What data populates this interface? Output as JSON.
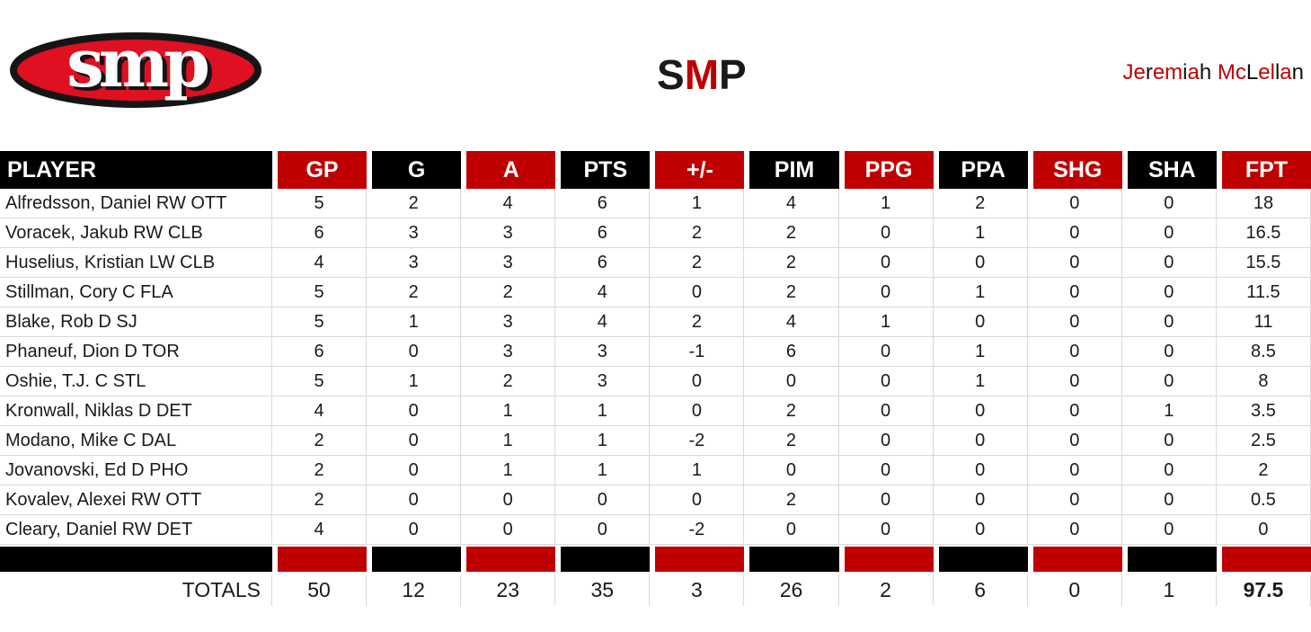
{
  "header": {
    "logo": {
      "text": "smp",
      "ellipse_fill": "#DE1021",
      "ellipse_stroke": "#151515",
      "letter_color": "#ffffff",
      "letter_shadow": "#151515"
    },
    "title_segments": [
      {
        "text": "S",
        "color": "#1a1a1a"
      },
      {
        "text": "M",
        "color": "#C00000"
      },
      {
        "text": "P",
        "color": "#1a1a1a"
      }
    ],
    "owner_segments": [
      {
        "text": "Je",
        "color": "#C00000"
      },
      {
        "text": "r",
        "color": "#111111"
      },
      {
        "text": "em",
        "color": "#C00000"
      },
      {
        "text": "i",
        "color": "#111111"
      },
      {
        "text": "a",
        "color": "#C00000"
      },
      {
        "text": "h ",
        "color": "#111111"
      },
      {
        "text": "Mc",
        "color": "#C00000"
      },
      {
        "text": "L",
        "color": "#111111"
      },
      {
        "text": "el",
        "color": "#C00000"
      },
      {
        "text": "l",
        "color": "#111111"
      },
      {
        "text": "a",
        "color": "#C00000"
      },
      {
        "text": "n",
        "color": "#111111"
      }
    ]
  },
  "table": {
    "columns": [
      {
        "key": "player",
        "label": "PLAYER",
        "bg": "#000000"
      },
      {
        "key": "gp",
        "label": "GP",
        "bg": "#C00000"
      },
      {
        "key": "g",
        "label": "G",
        "bg": "#000000"
      },
      {
        "key": "a",
        "label": "A",
        "bg": "#C00000"
      },
      {
        "key": "pts",
        "label": "PTS",
        "bg": "#000000"
      },
      {
        "key": "plus-minus",
        "label": "+/-",
        "bg": "#C00000"
      },
      {
        "key": "pim",
        "label": "PIM",
        "bg": "#000000"
      },
      {
        "key": "ppg",
        "label": "PPG",
        "bg": "#C00000"
      },
      {
        "key": "ppa",
        "label": "PPA",
        "bg": "#000000"
      },
      {
        "key": "shg",
        "label": "SHG",
        "bg": "#C00000"
      },
      {
        "key": "sha",
        "label": "SHA",
        "bg": "#000000"
      },
      {
        "key": "fpt",
        "label": "FPT",
        "bg": "#C00000"
      }
    ],
    "rows": [
      {
        "player": "Alfredsson, Daniel RW OTT",
        "stats": [
          "5",
          "2",
          "4",
          "6",
          "1",
          "4",
          "1",
          "2",
          "0",
          "0",
          "18"
        ]
      },
      {
        "player": "Voracek, Jakub RW CLB",
        "stats": [
          "6",
          "3",
          "3",
          "6",
          "2",
          "2",
          "0",
          "1",
          "0",
          "0",
          "16.5"
        ]
      },
      {
        "player": "Huselius, Kristian LW CLB",
        "stats": [
          "4",
          "3",
          "3",
          "6",
          "2",
          "2",
          "0",
          "0",
          "0",
          "0",
          "15.5"
        ]
      },
      {
        "player": "Stillman, Cory C FLA",
        "stats": [
          "5",
          "2",
          "2",
          "4",
          "0",
          "2",
          "0",
          "1",
          "0",
          "0",
          "11.5"
        ]
      },
      {
        "player": "Blake, Rob D SJ",
        "stats": [
          "5",
          "1",
          "3",
          "4",
          "2",
          "4",
          "1",
          "0",
          "0",
          "0",
          "11"
        ]
      },
      {
        "player": "Phaneuf, Dion D TOR",
        "stats": [
          "6",
          "0",
          "3",
          "3",
          "-1",
          "6",
          "0",
          "1",
          "0",
          "0",
          "8.5"
        ]
      },
      {
        "player": "Oshie, T.J. C STL",
        "stats": [
          "5",
          "1",
          "2",
          "3",
          "0",
          "0",
          "0",
          "1",
          "0",
          "0",
          "8"
        ]
      },
      {
        "player": "Kronwall, Niklas D DET",
        "stats": [
          "4",
          "0",
          "1",
          "1",
          "0",
          "2",
          "0",
          "0",
          "0",
          "1",
          "3.5"
        ]
      },
      {
        "player": "Modano, Mike C DAL",
        "stats": [
          "2",
          "0",
          "1",
          "1",
          "-2",
          "2",
          "0",
          "0",
          "0",
          "0",
          "2.5"
        ]
      },
      {
        "player": "Jovanovski, Ed D PHO",
        "stats": [
          "2",
          "0",
          "1",
          "1",
          "1",
          "0",
          "0",
          "0",
          "0",
          "0",
          "2"
        ]
      },
      {
        "player": "Kovalev, Alexei RW OTT",
        "stats": [
          "2",
          "0",
          "0",
          "0",
          "0",
          "2",
          "0",
          "0",
          "0",
          "0",
          "0.5"
        ]
      },
      {
        "player": "Cleary, Daniel RW DET",
        "stats": [
          "4",
          "0",
          "0",
          "0",
          "-2",
          "0",
          "0",
          "0",
          "0",
          "0",
          "0"
        ]
      }
    ],
    "totals": {
      "label": "TOTALS",
      "values": [
        "50",
        "12",
        "23",
        "35",
        "3",
        "26",
        "2",
        "6",
        "0",
        "1",
        "97.5"
      ]
    }
  },
  "colors": {
    "header_red": "#C00000",
    "header_black": "#000000",
    "grid_line": "#D9D9D9",
    "text": "#1a1a1a"
  }
}
